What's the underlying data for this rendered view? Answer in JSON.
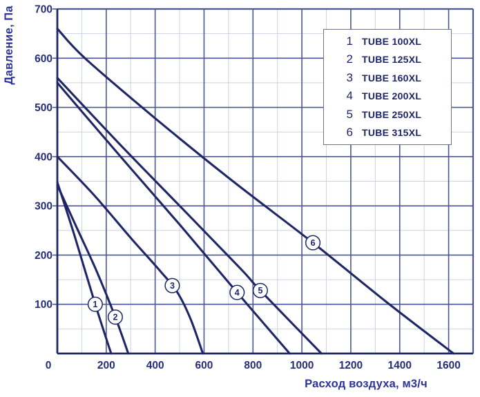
{
  "chart_data": {
    "type": "line",
    "title": "",
    "xlabel": "Расход воздуха, м3/ч",
    "ylabel": "Давление, Па",
    "xlim": [
      0,
      1700
    ],
    "ylim": [
      0,
      700
    ],
    "x_ticks": [
      0,
      200,
      400,
      600,
      800,
      1000,
      1200,
      1400,
      1600
    ],
    "x_minor_step": 100,
    "y_ticks": [
      100,
      200,
      300,
      400,
      500,
      600,
      700
    ],
    "y_minor_step": 50,
    "grid": true,
    "legend_position": "top-right",
    "series": [
      {
        "id": 1,
        "name": "TUBE 100XL",
        "points": [
          [
            0,
            348
          ],
          [
            70,
            240
          ],
          [
            155,
            100
          ],
          [
            220,
            0
          ]
        ],
        "label_at": [
          155,
          100
        ]
      },
      {
        "id": 2,
        "name": "TUBE 125XL",
        "points": [
          [
            0,
            342
          ],
          [
            80,
            255
          ],
          [
            160,
            168
          ],
          [
            237,
            74
          ],
          [
            290,
            0
          ]
        ],
        "label_at": [
          237,
          74
        ]
      },
      {
        "id": 3,
        "name": "TUBE 160XL",
        "points": [
          [
            0,
            400
          ],
          [
            150,
            322
          ],
          [
            300,
            235
          ],
          [
            420,
            168
          ],
          [
            490,
            125
          ],
          [
            545,
            70
          ],
          [
            595,
            0
          ]
        ],
        "label_at": [
          470,
          138
        ]
      },
      {
        "id": 4,
        "name": "TUBE 200XL",
        "points": [
          [
            0,
            550
          ],
          [
            250,
            405
          ],
          [
            500,
            262
          ],
          [
            735,
            124
          ],
          [
            950,
            0
          ]
        ],
        "label_at": [
          735,
          124
        ]
      },
      {
        "id": 5,
        "name": "TUBE 250XL",
        "points": [
          [
            0,
            560
          ],
          [
            250,
            428
          ],
          [
            500,
            300
          ],
          [
            750,
            172
          ],
          [
            830,
            128
          ],
          [
            1080,
            0
          ]
        ],
        "label_at": [
          830,
          128
        ]
      },
      {
        "id": 6,
        "name": "TUBE 315XL",
        "points": [
          [
            0,
            660
          ],
          [
            113,
            600
          ],
          [
            400,
            478
          ],
          [
            700,
            357
          ],
          [
            1045,
            225
          ],
          [
            1350,
            103
          ],
          [
            1620,
            0
          ]
        ],
        "label_at": [
          1045,
          225
        ]
      }
    ],
    "colors": {
      "curve": "#1f2665",
      "grid_major": "#4d5694",
      "grid_minor": "#ccd2e2",
      "axis": "#1f2665",
      "tick_text": "#252e78",
      "title_text": "#2b339b",
      "background": "#ffffff"
    }
  }
}
